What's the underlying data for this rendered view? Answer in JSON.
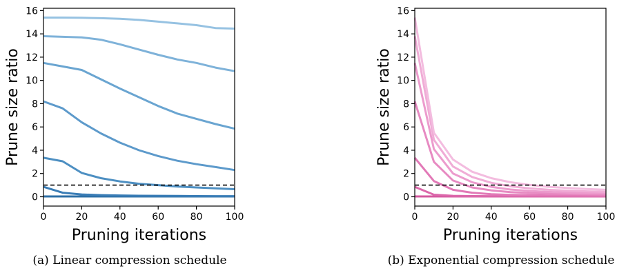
{
  "chart_data": [
    {
      "type": "line",
      "caption": "(a) Linear compression schedule",
      "xlabel": "Pruning iterations",
      "ylabel": "Prune size ratio",
      "xlim": [
        0,
        100
      ],
      "ylim": [
        -0.8,
        16.2
      ],
      "xticks": [
        0,
        20,
        40,
        60,
        80,
        100
      ],
      "yticks": [
        0,
        2,
        4,
        6,
        8,
        10,
        12,
        14,
        16
      ],
      "grid": false,
      "reference_line": {
        "y": 1,
        "style": "dashed",
        "color": "#000000"
      },
      "colors": [
        "#2d6fa6",
        "#3a7db6",
        "#4d8fc2",
        "#5d9acb",
        "#6aa5d1",
        "#7eb2d9",
        "#96c2e2"
      ],
      "x": [
        0,
        10,
        20,
        30,
        40,
        50,
        60,
        70,
        80,
        90,
        100
      ],
      "series": [
        {
          "values": [
            0.03,
            0.03,
            0.03,
            0.03,
            0.03,
            0.03,
            0.03,
            0.03,
            0.03,
            0.03,
            0.03
          ]
        },
        {
          "values": [
            0.85,
            0.35,
            0.2,
            0.14,
            0.11,
            0.09,
            0.08,
            0.07,
            0.06,
            0.05,
            0.05
          ]
        },
        {
          "values": [
            3.35,
            3.05,
            2.05,
            1.6,
            1.32,
            1.12,
            1.0,
            0.88,
            0.8,
            0.72,
            0.65
          ]
        },
        {
          "values": [
            8.2,
            7.6,
            6.4,
            5.45,
            4.65,
            4.0,
            3.5,
            3.1,
            2.8,
            2.55,
            2.3
          ]
        },
        {
          "values": [
            11.5,
            11.2,
            10.9,
            10.1,
            9.3,
            8.55,
            7.8,
            7.15,
            6.7,
            6.25,
            5.85
          ]
        },
        {
          "values": [
            13.8,
            13.75,
            13.7,
            13.5,
            13.1,
            12.65,
            12.2,
            11.8,
            11.5,
            11.1,
            10.8
          ]
        },
        {
          "values": [
            15.4,
            15.4,
            15.38,
            15.35,
            15.3,
            15.2,
            15.05,
            14.9,
            14.75,
            14.5,
            14.45
          ]
        }
      ]
    },
    {
      "type": "line",
      "caption": "(b) Exponential compression schedule",
      "xlabel": "Pruning iterations",
      "ylabel": "Prune size ratio",
      "xlim": [
        0,
        100
      ],
      "ylim": [
        -0.8,
        16.2
      ],
      "xticks": [
        0,
        20,
        40,
        60,
        80,
        100
      ],
      "yticks": [
        0,
        2,
        4,
        6,
        8,
        10,
        12,
        14,
        16
      ],
      "grid": false,
      "reference_line": {
        "y": 1,
        "style": "dashed",
        "color": "#000000"
      },
      "colors": [
        "#d5589f",
        "#dc68ab",
        "#e279b7",
        "#e78ac2",
        "#ec9bcd",
        "#f0acd6",
        "#f3bcdf"
      ],
      "x": [
        0,
        10,
        20,
        30,
        40,
        50,
        60,
        70,
        80,
        90,
        100
      ],
      "series": [
        {
          "values": [
            0.03,
            0.03,
            0.03,
            0.03,
            0.03,
            0.03,
            0.03,
            0.03,
            0.03,
            0.03,
            0.03
          ]
        },
        {
          "values": [
            0.85,
            0.18,
            0.08,
            0.06,
            0.05,
            0.05,
            0.05,
            0.05,
            0.05,
            0.05,
            0.05
          ]
        },
        {
          "values": [
            3.35,
            1.35,
            0.6,
            0.35,
            0.22,
            0.16,
            0.13,
            0.11,
            0.1,
            0.09,
            0.08
          ]
        },
        {
          "values": [
            8.2,
            3.0,
            1.4,
            0.8,
            0.55,
            0.4,
            0.32,
            0.27,
            0.24,
            0.22,
            0.2
          ]
        },
        {
          "values": [
            11.5,
            4.1,
            2.0,
            1.25,
            0.85,
            0.62,
            0.5,
            0.42,
            0.36,
            0.32,
            0.3
          ]
        },
        {
          "values": [
            13.8,
            4.9,
            2.6,
            1.7,
            1.2,
            0.9,
            0.72,
            0.6,
            0.52,
            0.47,
            0.43
          ]
        },
        {
          "values": [
            15.4,
            5.5,
            3.2,
            2.15,
            1.6,
            1.25,
            1.02,
            0.85,
            0.75,
            0.67,
            0.6
          ]
        }
      ]
    }
  ]
}
